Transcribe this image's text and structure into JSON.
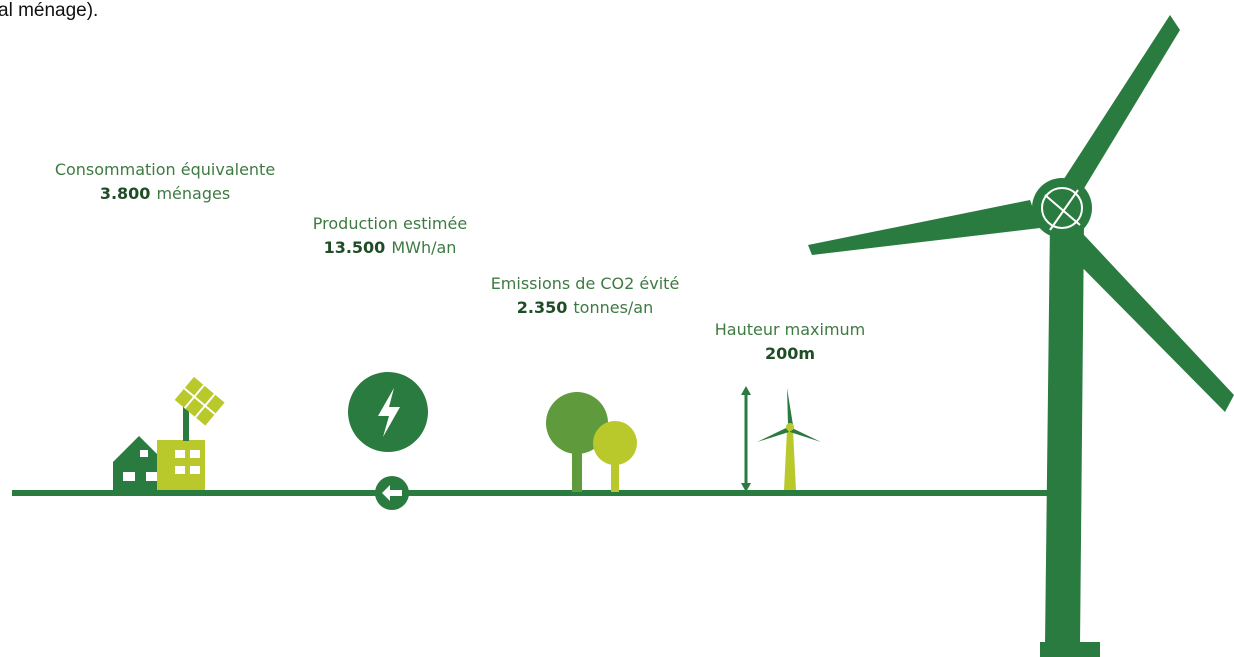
{
  "top_fragment": "al ménage).",
  "stats": [
    {
      "label": "Consommation équivalente",
      "value": "3.800",
      "unit": "ménages"
    },
    {
      "label": "Production estimée",
      "value": "13.500",
      "unit": "MWh/an"
    },
    {
      "label": "Emissions de CO2 évité",
      "value": "2.350",
      "unit": "tonnes/an"
    },
    {
      "label": "Hauteur maximum",
      "value": "200m"
    }
  ]
}
